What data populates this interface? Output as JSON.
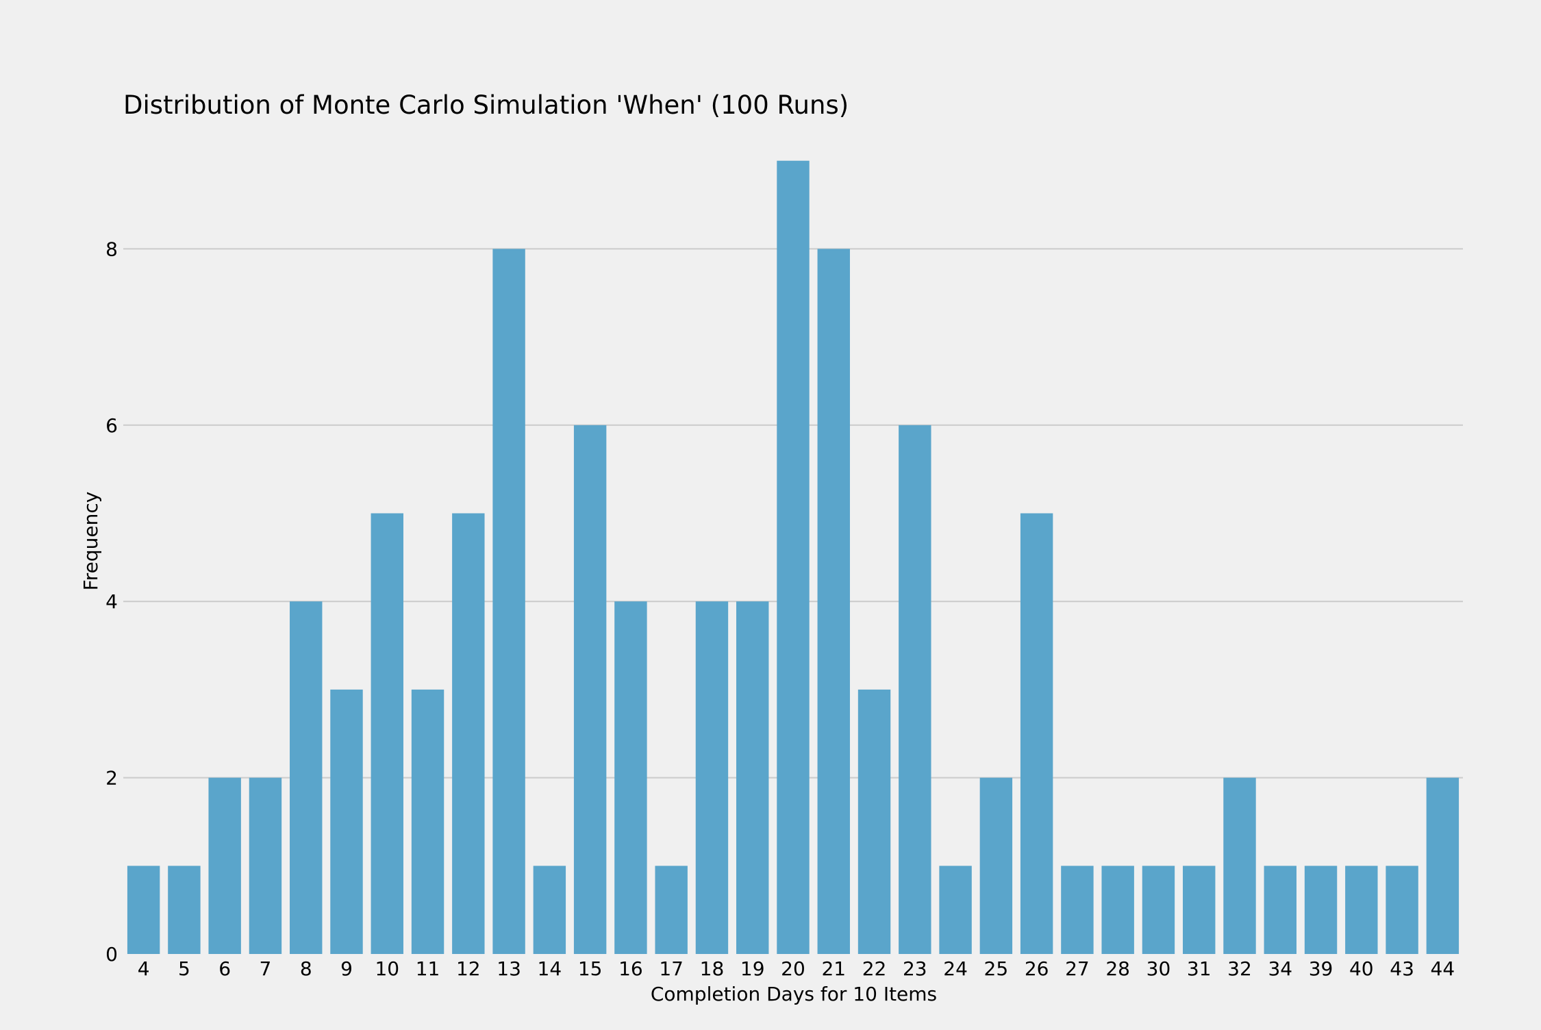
{
  "chart_data": {
    "type": "bar",
    "title": "Distribution of Monte Carlo Simulation 'When' (100 Runs)",
    "xlabel": "Completion Days for 10 Items",
    "ylabel": "Frequency",
    "categories": [
      "4",
      "5",
      "6",
      "7",
      "8",
      "9",
      "10",
      "11",
      "12",
      "13",
      "14",
      "15",
      "16",
      "17",
      "18",
      "19",
      "20",
      "21",
      "22",
      "23",
      "24",
      "25",
      "26",
      "27",
      "28",
      "30",
      "31",
      "32",
      "34",
      "39",
      "40",
      "43",
      "44"
    ],
    "values": [
      1,
      1,
      2,
      2,
      4,
      3,
      5,
      3,
      5,
      8,
      1,
      6,
      4,
      1,
      4,
      4,
      9,
      8,
      3,
      6,
      1,
      2,
      5,
      1,
      1,
      1,
      1,
      2,
      1,
      1,
      1,
      1,
      2
    ],
    "ylim": [
      0,
      9
    ],
    "yticks": [
      0,
      2,
      4,
      6,
      8
    ],
    "grid": "horizontal",
    "colors": {
      "bar": "#5aa5cb",
      "background": "#f0f0f0",
      "grid": "#cbcbcb"
    }
  }
}
